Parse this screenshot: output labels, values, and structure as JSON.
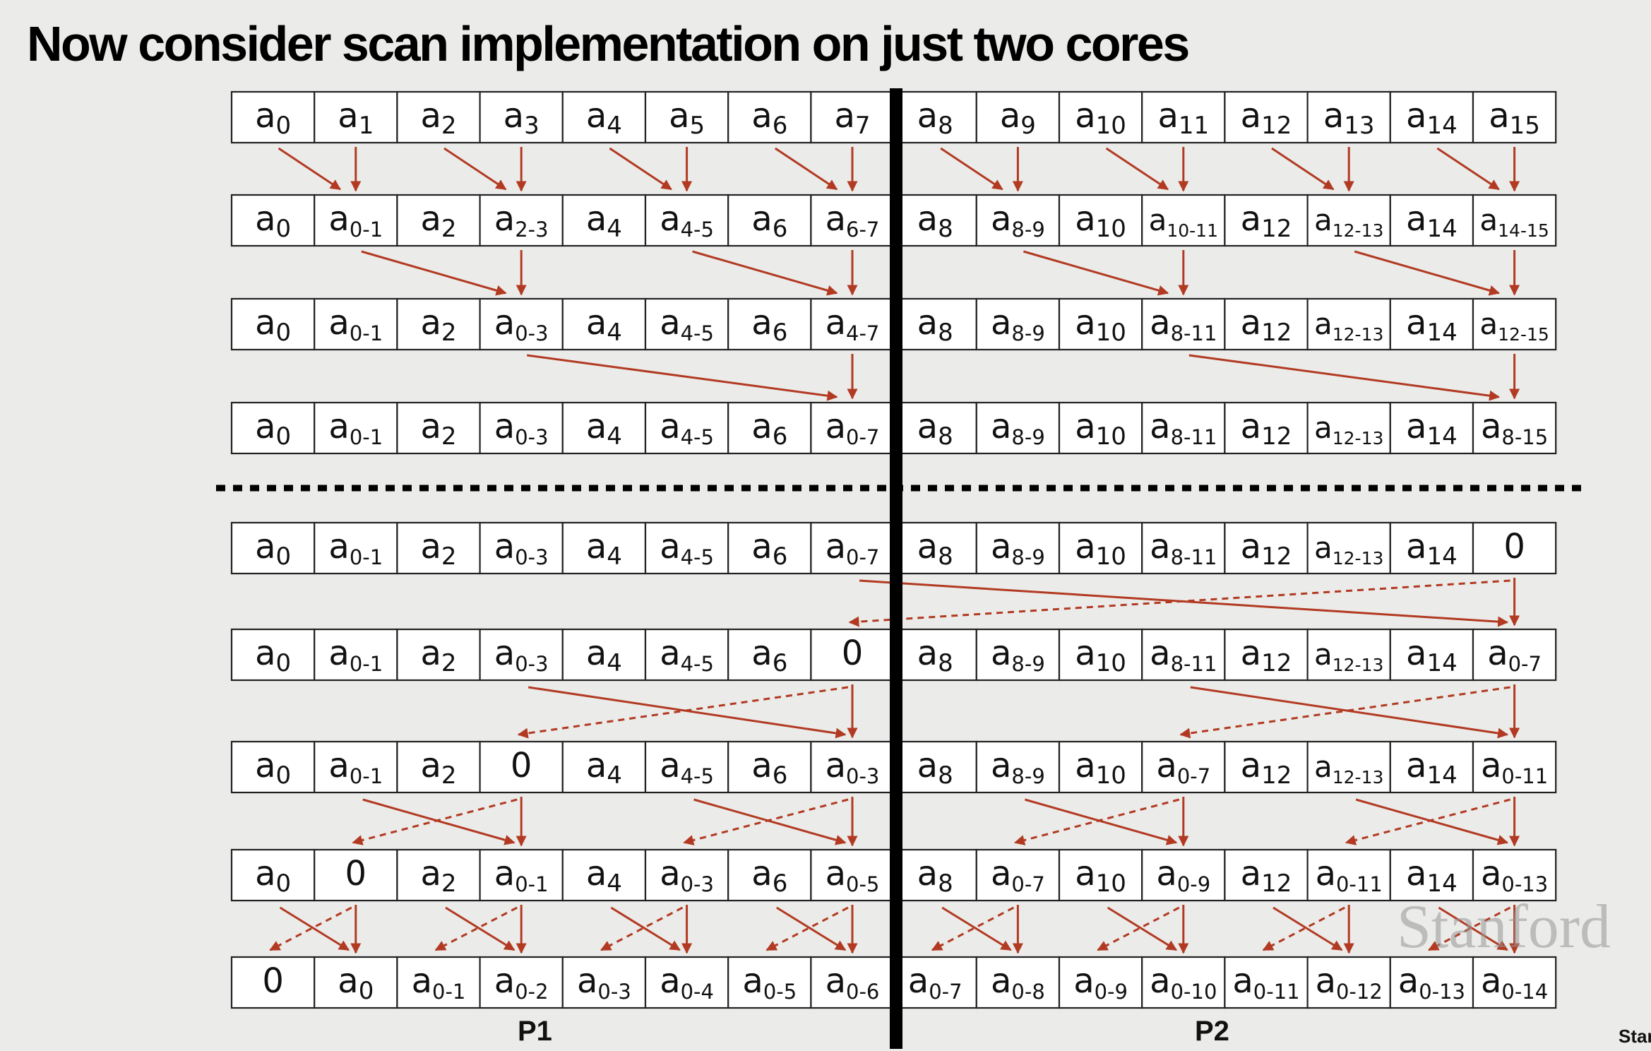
{
  "title": "Now consider scan implementation on just two cores",
  "labels": {
    "p1": "P1",
    "p2": "P2"
  },
  "watermark": "Stanford",
  "corner_text": "Stanford",
  "colors": {
    "arrow": "#b23a22",
    "divider": "#000000",
    "cell_border": "#222222"
  },
  "rows": [
    [
      [
        "a",
        "0"
      ],
      [
        "a",
        "1"
      ],
      [
        "a",
        "2"
      ],
      [
        "a",
        "3"
      ],
      [
        "a",
        "4"
      ],
      [
        "a",
        "5"
      ],
      [
        "a",
        "6"
      ],
      [
        "a",
        "7"
      ],
      [
        "a",
        "8"
      ],
      [
        "a",
        "9"
      ],
      [
        "a",
        "10"
      ],
      [
        "a",
        "11"
      ],
      [
        "a",
        "12"
      ],
      [
        "a",
        "13"
      ],
      [
        "a",
        "14"
      ],
      [
        "a",
        "15"
      ]
    ],
    [
      [
        "a",
        "0"
      ],
      [
        "a",
        "0-1"
      ],
      [
        "a",
        "2"
      ],
      [
        "a",
        "2-3"
      ],
      [
        "a",
        "4"
      ],
      [
        "a",
        "4-5"
      ],
      [
        "a",
        "6"
      ],
      [
        "a",
        "6-7"
      ],
      [
        "a",
        "8"
      ],
      [
        "a",
        "8-9"
      ],
      [
        "a",
        "10"
      ],
      [
        "a",
        "10-11"
      ],
      [
        "a",
        "12"
      ],
      [
        "a",
        "12-13"
      ],
      [
        "a",
        "14"
      ],
      [
        "a",
        "14-15"
      ]
    ],
    [
      [
        "a",
        "0"
      ],
      [
        "a",
        "0-1"
      ],
      [
        "a",
        "2"
      ],
      [
        "a",
        "0-3"
      ],
      [
        "a",
        "4"
      ],
      [
        "a",
        "4-5"
      ],
      [
        "a",
        "6"
      ],
      [
        "a",
        "4-7"
      ],
      [
        "a",
        "8"
      ],
      [
        "a",
        "8-9"
      ],
      [
        "a",
        "10"
      ],
      [
        "a",
        "8-11"
      ],
      [
        "a",
        "12"
      ],
      [
        "a",
        "12-13"
      ],
      [
        "a",
        "14"
      ],
      [
        "a",
        "12-15"
      ]
    ],
    [
      [
        "a",
        "0"
      ],
      [
        "a",
        "0-1"
      ],
      [
        "a",
        "2"
      ],
      [
        "a",
        "0-3"
      ],
      [
        "a",
        "4"
      ],
      [
        "a",
        "4-5"
      ],
      [
        "a",
        "6"
      ],
      [
        "a",
        "0-7"
      ],
      [
        "a",
        "8"
      ],
      [
        "a",
        "8-9"
      ],
      [
        "a",
        "10"
      ],
      [
        "a",
        "8-11"
      ],
      [
        "a",
        "12"
      ],
      [
        "a",
        "12-13"
      ],
      [
        "a",
        "14"
      ],
      [
        "a",
        "8-15"
      ]
    ],
    [
      [
        "a",
        "0"
      ],
      [
        "a",
        "0-1"
      ],
      [
        "a",
        "2"
      ],
      [
        "a",
        "0-3"
      ],
      [
        "a",
        "4"
      ],
      [
        "a",
        "4-5"
      ],
      [
        "a",
        "6"
      ],
      [
        "a",
        "0-7"
      ],
      [
        "a",
        "8"
      ],
      [
        "a",
        "8-9"
      ],
      [
        "a",
        "10"
      ],
      [
        "a",
        "8-11"
      ],
      [
        "a",
        "12"
      ],
      [
        "a",
        "12-13"
      ],
      [
        "a",
        "14"
      ],
      [
        "0",
        ""
      ]
    ],
    [
      [
        "a",
        "0"
      ],
      [
        "a",
        "0-1"
      ],
      [
        "a",
        "2"
      ],
      [
        "a",
        "0-3"
      ],
      [
        "a",
        "4"
      ],
      [
        "a",
        "4-5"
      ],
      [
        "a",
        "6"
      ],
      [
        "0",
        ""
      ],
      [
        "a",
        "8"
      ],
      [
        "a",
        "8-9"
      ],
      [
        "a",
        "10"
      ],
      [
        "a",
        "8-11"
      ],
      [
        "a",
        "12"
      ],
      [
        "a",
        "12-13"
      ],
      [
        "a",
        "14"
      ],
      [
        "a",
        "0-7"
      ]
    ],
    [
      [
        "a",
        "0"
      ],
      [
        "a",
        "0-1"
      ],
      [
        "a",
        "2"
      ],
      [
        "0",
        ""
      ],
      [
        "a",
        "4"
      ],
      [
        "a",
        "4-5"
      ],
      [
        "a",
        "6"
      ],
      [
        "a",
        "0-3"
      ],
      [
        "a",
        "8"
      ],
      [
        "a",
        "8-9"
      ],
      [
        "a",
        "10"
      ],
      [
        "a",
        "0-7"
      ],
      [
        "a",
        "12"
      ],
      [
        "a",
        "12-13"
      ],
      [
        "a",
        "14"
      ],
      [
        "a",
        "0-11"
      ]
    ],
    [
      [
        "a",
        "0"
      ],
      [
        "0",
        ""
      ],
      [
        "a",
        "2"
      ],
      [
        "a",
        "0-1"
      ],
      [
        "a",
        "4"
      ],
      [
        "a",
        "0-3"
      ],
      [
        "a",
        "6"
      ],
      [
        "a",
        "0-5"
      ],
      [
        "a",
        "8"
      ],
      [
        "a",
        "0-7"
      ],
      [
        "a",
        "10"
      ],
      [
        "a",
        "0-9"
      ],
      [
        "a",
        "12"
      ],
      [
        "a",
        "0-11"
      ],
      [
        "a",
        "14"
      ],
      [
        "a",
        "0-13"
      ]
    ],
    [
      [
        "0",
        ""
      ],
      [
        "a",
        "0"
      ],
      [
        "a",
        "0-1"
      ],
      [
        "a",
        "0-2"
      ],
      [
        "a",
        "0-3"
      ],
      [
        "a",
        "0-4"
      ],
      [
        "a",
        "0-5"
      ],
      [
        "a",
        "0-6"
      ],
      [
        "a",
        "0-7"
      ],
      [
        "a",
        "0-8"
      ],
      [
        "a",
        "0-9"
      ],
      [
        "a",
        "0-10"
      ],
      [
        "a",
        "0-11"
      ],
      [
        "a",
        "0-12"
      ],
      [
        "a",
        "0-13"
      ],
      [
        "a",
        "0-14"
      ]
    ]
  ],
  "steps": [
    {
      "kind": "up",
      "span": 1
    },
    {
      "kind": "up",
      "span": 2
    },
    {
      "kind": "up",
      "span": 4
    },
    {
      "kind": "clear_last"
    },
    {
      "kind": "down",
      "span": 8
    },
    {
      "kind": "down",
      "span": 4
    },
    {
      "kind": "down",
      "span": 2
    },
    {
      "kind": "down",
      "span": 1
    }
  ]
}
